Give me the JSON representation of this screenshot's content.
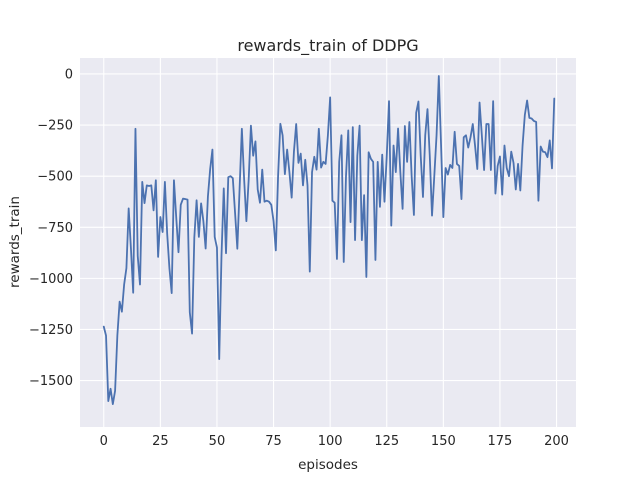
{
  "chart_data": {
    "type": "line",
    "title": "rewards_train of DDPG",
    "xlabel": "episodes",
    "ylabel": "rewards_train",
    "grid": true,
    "legend": "none",
    "style": "seaborn-darkgrid",
    "x_ticks": [
      0,
      25,
      50,
      75,
      100,
      125,
      150,
      175,
      200
    ],
    "x_tick_labels": [
      "0",
      "25",
      "50",
      "75",
      "100",
      "125",
      "150",
      "175",
      "200"
    ],
    "y_ticks": [
      0,
      -250,
      -500,
      -750,
      -1000,
      -1250,
      -1500
    ],
    "y_tick_labels": [
      "0",
      "−250",
      "−500",
      "−750",
      "−1000",
      "−1250",
      "−1500"
    ],
    "xlim": [
      -10.5,
      208.6
    ],
    "ylim": [
      -1727,
      78
    ],
    "colors": {
      "line": "#4c72b0",
      "plot_background": "#eaeaf2",
      "gridline": "#ffffff",
      "figure_background": "#ffffff",
      "text": "#262626"
    },
    "series": [
      {
        "name": "rewards_train",
        "color": "#4c72b0",
        "x_start": 0,
        "x_step": 1,
        "values": [
          -1236,
          -1280,
          -1600,
          -1540,
          -1615,
          -1550,
          -1280,
          -1114,
          -1163,
          -1030,
          -950,
          -658,
          -854,
          -1070,
          -268,
          -890,
          -1030,
          -528,
          -632,
          -545,
          -548,
          -545,
          -667,
          -520,
          -895,
          -700,
          -773,
          -528,
          -780,
          -950,
          -1072,
          -520,
          -700,
          -872,
          -640,
          -610,
          -612,
          -615,
          -1166,
          -1270,
          -800,
          -618,
          -797,
          -633,
          -720,
          -854,
          -600,
          -465,
          -370,
          -797,
          -850,
          -1395,
          -890,
          -560,
          -877,
          -505,
          -500,
          -510,
          -680,
          -855,
          -560,
          -268,
          -515,
          -720,
          -520,
          -253,
          -400,
          -330,
          -565,
          -630,
          -468,
          -625,
          -620,
          -625,
          -640,
          -720,
          -863,
          -500,
          -244,
          -300,
          -490,
          -370,
          -480,
          -605,
          -380,
          -245,
          -435,
          -390,
          -545,
          -420,
          -545,
          -967,
          -480,
          -405,
          -468,
          -268,
          -458,
          -430,
          -440,
          -300,
          -115,
          -620,
          -630,
          -905,
          -430,
          -300,
          -920,
          -500,
          -276,
          -725,
          -260,
          -813,
          -400,
          -253,
          -813,
          -593,
          -993,
          -383,
          -415,
          -430,
          -910,
          -430,
          -650,
          -395,
          -625,
          -400,
          -133,
          -742,
          -350,
          -480,
          -267,
          -480,
          -660,
          -255,
          -430,
          -235,
          -500,
          -690,
          -190,
          -135,
          -400,
          -602,
          -300,
          -172,
          -400,
          -693,
          -500,
          -300,
          -10,
          -350,
          -700,
          -460,
          -492,
          -445,
          -460,
          -283,
          -440,
          -450,
          -612,
          -310,
          -300,
          -360,
          -310,
          -245,
          -350,
          -465,
          -140,
          -300,
          -470,
          -245,
          -245,
          -470,
          -133,
          -585,
          -450,
          -404,
          -590,
          -350,
          -460,
          -500,
          -380,
          -435,
          -565,
          -440,
          -570,
          -350,
          -200,
          -130,
          -215,
          -218,
          -230,
          -235,
          -620,
          -355,
          -380,
          -383,
          -407,
          -325,
          -462,
          -120
        ]
      }
    ]
  }
}
